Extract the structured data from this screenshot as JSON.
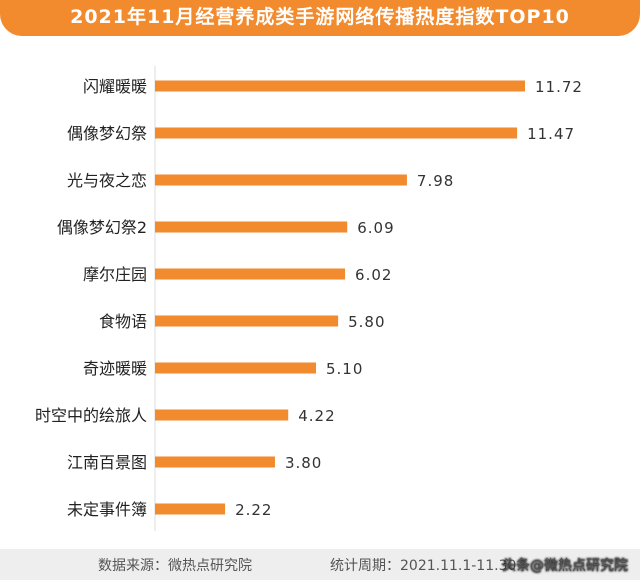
{
  "chart_data": {
    "type": "bar",
    "orientation": "horizontal",
    "title": "2021年11月经营养成类手游网络传播热度指数TOP10",
    "categories": [
      "闪耀暖暖",
      "偶像梦幻祭",
      "光与夜之恋",
      "偶像梦幻祭2",
      "摩尔庄园",
      "食物语",
      "奇迹暖暖",
      "时空中的绘旅人",
      "江南百景图",
      "未定事件簿"
    ],
    "values": [
      11.72,
      11.47,
      7.98,
      6.09,
      6.02,
      5.8,
      5.1,
      4.22,
      3.8,
      2.22
    ],
    "value_labels": [
      "11.72",
      "11.47",
      "7.98",
      "6.09",
      "6.02",
      "5.80",
      "5.10",
      "4.22",
      "3.80",
      "2.22"
    ],
    "xlim": [
      0,
      12
    ],
    "grid": false,
    "bar_color": "#f28a2e"
  },
  "footer": {
    "source": "数据来源：微热点研究院",
    "period": "统计周期：2021.11.1-11.30"
  },
  "watermark": "头条@微热点研究院",
  "colors": {
    "accent": "#f28a2e",
    "footer_bg": "#eeeeee"
  }
}
